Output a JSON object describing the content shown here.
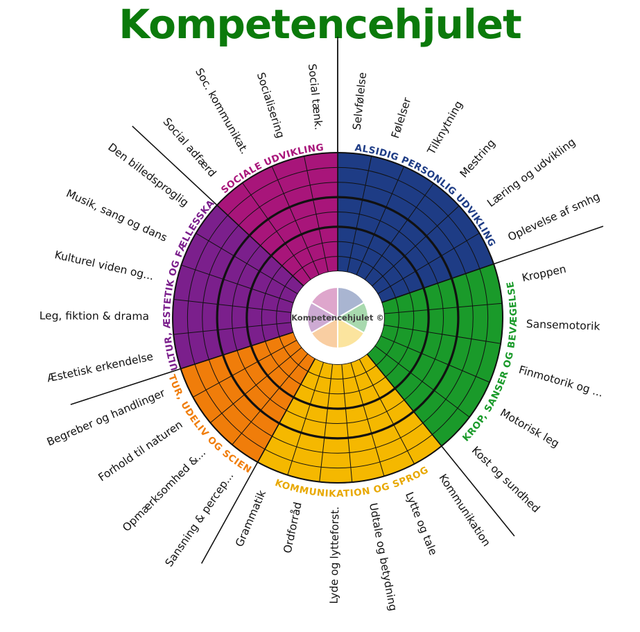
{
  "title": "Kompetencehjulet",
  "center_label": "Kompetencehjulet ©",
  "domains": [
    {
      "name": "ALSIDIG PERSONLIG UDVIKLING",
      "color": "#1e3c85",
      "label_color": "#1e3c85",
      "items": [
        "Selvfølelse",
        "Følelser",
        "Tilknytning",
        "Mestring",
        "Læring og udvikling",
        "Oplevelse af smhg"
      ]
    },
    {
      "name": "KROP, SANSER OG BEVÆGELSE",
      "color": "#1a9a2a",
      "label_color": "#1a9a2a",
      "items": [
        "Kroppen",
        "Sansemotorik",
        "Finmotorik og ...",
        "Motorisk leg",
        "Kost og sundhed"
      ]
    },
    {
      "name": "KOMMUNIKATION OG SPROG",
      "color": "#f5b800",
      "label_color": "#e8a800",
      "items": [
        "Kommunikation",
        "Lytte og tale",
        "Udtale og betydning",
        "Lyde og lytteforst.",
        "Ordforråd",
        "Grammatik"
      ]
    },
    {
      "name": "NATUR, UDELIV OG SCIENCE",
      "color": "#f07d0a",
      "label_color": "#f07d0a",
      "items": [
        "Sansning & percep...",
        "Opmærksomhed &...",
        "Forhold til naturen",
        "Begreber og handlinger"
      ]
    },
    {
      "name": "KULTUR, ÆSTETIK OG FÆLLESSKAB",
      "color": "#7b1f8c",
      "label_color": "#7b1f8c",
      "items": [
        "Æstetisk erkendelse",
        "Leg, fiktion & drama",
        "Kulturel viden og...",
        "Musik, sang og dans",
        "Den billedsproglig"
      ]
    },
    {
      "name": "SOCIALE UDVIKLING",
      "color": "#a8157a",
      "label_color": "#a8157a",
      "items": [
        "Social adfærd",
        "Soc. kommunikat.",
        "Socialisering",
        "Social tænk."
      ]
    }
  ]
}
